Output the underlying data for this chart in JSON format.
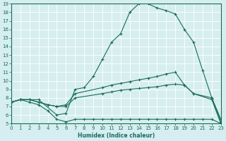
{
  "xlabel": "Humidex (Indice chaleur)",
  "bg_color": "#d6eef0",
  "line_color": "#1a6b5a",
  "grid_color": "#ffffff",
  "xlim": [
    0,
    23
  ],
  "ylim": [
    5,
    19
  ],
  "xticks": [
    0,
    1,
    2,
    3,
    4,
    5,
    6,
    7,
    8,
    9,
    10,
    11,
    12,
    13,
    14,
    15,
    16,
    17,
    18,
    19,
    20,
    21,
    22,
    23
  ],
  "yticks": [
    5,
    6,
    7,
    8,
    9,
    10,
    11,
    12,
    13,
    14,
    15,
    16,
    17,
    18,
    19
  ],
  "curve1_x": [
    0,
    1,
    2,
    3,
    5,
    6,
    7,
    8,
    9,
    10,
    11,
    12,
    13,
    14,
    15,
    16,
    17,
    18,
    19,
    20,
    21,
    22,
    23
  ],
  "curve1_y": [
    7.5,
    7.8,
    7.8,
    7.8,
    6.0,
    6.2,
    9.0,
    9.2,
    10.5,
    12.5,
    14.5,
    15.5,
    18.0,
    19.0,
    19.0,
    18.5,
    18.2,
    17.8,
    16.0,
    14.5,
    11.2,
    8.0,
    5.5
  ],
  "curve2_x": [
    0,
    1,
    2,
    3,
    4,
    5,
    6,
    7,
    10,
    11,
    12,
    13,
    14,
    15,
    16,
    17,
    18,
    19,
    20,
    22,
    23
  ],
  "curve2_y": [
    7.5,
    7.8,
    7.8,
    7.5,
    7.2,
    7.0,
    7.2,
    8.5,
    9.2,
    9.5,
    9.7,
    9.9,
    10.1,
    10.3,
    10.5,
    10.8,
    11.0,
    9.5,
    8.5,
    8.0,
    5.2
  ],
  "curve3_x": [
    0,
    1,
    2,
    3,
    4,
    5,
    6,
    7,
    10,
    11,
    12,
    13,
    14,
    15,
    16,
    17,
    18,
    19,
    20,
    22,
    23
  ],
  "curve3_y": [
    7.5,
    7.8,
    7.8,
    7.5,
    7.2,
    7.0,
    7.0,
    8.0,
    8.5,
    8.7,
    8.9,
    9.0,
    9.1,
    9.2,
    9.3,
    9.5,
    9.6,
    9.5,
    8.5,
    7.8,
    5.0
  ],
  "curve4_x": [
    0,
    1,
    2,
    3,
    4,
    5,
    6,
    7,
    8,
    9,
    10,
    11,
    12,
    13,
    14,
    15,
    16,
    17,
    18,
    19,
    20,
    21,
    22,
    23
  ],
  "curve4_y": [
    7.5,
    7.8,
    7.5,
    7.2,
    6.5,
    5.5,
    5.2,
    5.5,
    5.5,
    5.5,
    5.5,
    5.5,
    5.5,
    5.5,
    5.5,
    5.5,
    5.5,
    5.5,
    5.5,
    5.5,
    5.5,
    5.5,
    5.5,
    5.0
  ]
}
